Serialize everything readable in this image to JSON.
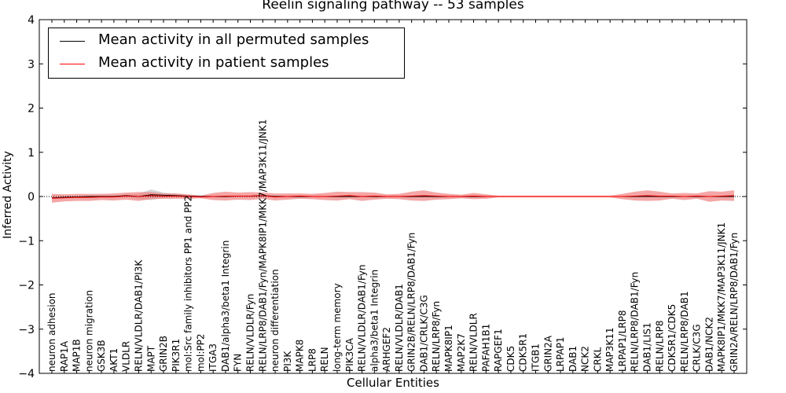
{
  "chart_data": {
    "type": "line",
    "title": "Reelin signaling pathway -- 53 samples",
    "xlabel": "Cellular Entities",
    "ylabel": "Inferred Activity",
    "ylim": [
      -4,
      4
    ],
    "yticks": [
      -4,
      -3,
      -2,
      -1,
      0,
      1,
      2,
      3,
      4
    ],
    "grid": false,
    "legend_position": "top-left",
    "colors": {
      "permuted": "#000000",
      "patient": "#ff0000",
      "band": "#f08080",
      "grey_band": "#bbbbbb"
    },
    "categories": [
      "neuron adhesion",
      "RAP1A",
      "MAP1B",
      "neuron migration",
      "GSK3B",
      "AKT1",
      "VLDLR",
      "RELN/VLDLR/DAB1/PI3K",
      "MAPT",
      "GRIN2B",
      "PIK3R1",
      "mol:Src family inhibitors PP1 and PP2",
      "mol:PP2",
      "ITGA3",
      "DAB1/alpha3/beta1 Integrin",
      "FYN",
      "RELN/VLDLR/Fyn",
      "RELN/LRP8/DAB1/Fyn/MAPK8IP1/MKK7/MAP3K11/JNK1",
      "neuron differentiation",
      "PI3K",
      "MAPK8",
      "LRP8",
      "RELN",
      "long-term memory",
      "PIK3CA",
      "RELN/VLDLR/DAB1/Fyn",
      "alpha3/beta1 Integrin",
      "ARHGEF2",
      "RELN/VLDLR/DAB1",
      "GRIN2B/RELN/LRP8/DAB1/Fyn",
      "DAB1/CRLK/C3G",
      "RELN/LRP8/Fyn",
      "MAPK8IP1",
      "MAP2K7",
      "RELN/VLDLR",
      "PAFAH1B1",
      "RAPGEF1",
      "CDK5",
      "CDK5R1",
      "ITGB1",
      "GRIN2A",
      "LRPAP1",
      "DAB1",
      "NCK2",
      "CRKL",
      "MAP3K11",
      "LRPAP1/LRP8",
      "RELN/LRP8/DAB1/Fyn",
      "DAB1/LIS1",
      "RELN/LRP8",
      "CDK5R1/CDK5",
      "RELN/LRP8/DAB1",
      "CRLK/C3G",
      "DAB1/NCK2",
      "MAPK8IP1/MKK7/MAP3K11/JNK1",
      "GRIN2A/RELN/LRP8/DAB1/Fyn"
    ],
    "series": [
      {
        "name": "Mean activity in all permuted samples",
        "color": "#000000",
        "values": [
          -0.03,
          -0.02,
          -0.01,
          0.0,
          0.0,
          0.0,
          0.02,
          0.0,
          0.04,
          0.03,
          0.02,
          0.01,
          0.0,
          0.0,
          0.0,
          0.01,
          0.01,
          0.02,
          0.0,
          0.0,
          0.0,
          0.0,
          0.0,
          0.0,
          0.0,
          0.0,
          0.0,
          0.0,
          0.0,
          0.0,
          0.0,
          0.0,
          0.0,
          0.0,
          0.0,
          0.0,
          0.0,
          0.0,
          0.0,
          0.0,
          0.0,
          0.0,
          0.0,
          0.0,
          0.0,
          0.0,
          0.0,
          0.0,
          0.0,
          0.0,
          0.0,
          0.0,
          0.0,
          0.0,
          0.0,
          0.0
        ],
        "band": [
          0.02,
          0.02,
          0.02,
          0.02,
          0.02,
          0.02,
          0.02,
          0.06,
          0.12,
          0.06,
          0.04,
          0.02,
          0.02,
          0.02,
          0.02,
          0.02,
          0.02,
          0.02,
          0.02,
          0.02,
          0.02,
          0.02,
          0.02,
          0.02,
          0.02,
          0.02,
          0.02,
          0.02,
          0.02,
          0.02,
          0.02,
          0.02,
          0.02,
          0.02,
          0.02,
          0.02,
          0.01,
          0.01,
          0.01,
          0.01,
          0.01,
          0.01,
          0.01,
          0.01,
          0.01,
          0.01,
          0.01,
          0.01,
          0.01,
          0.01,
          0.01,
          0.01,
          0.01,
          0.01,
          0.01,
          0.01
        ]
      },
      {
        "name": "Mean activity in patient samples",
        "color": "#ff0000",
        "values": [
          -0.04,
          -0.03,
          -0.02,
          -0.02,
          -0.01,
          -0.01,
          0.01,
          0.0,
          0.02,
          0.01,
          0.01,
          0.0,
          -0.01,
          0.0,
          0.01,
          0.01,
          0.01,
          0.02,
          -0.01,
          0.0,
          0.01,
          0.0,
          0.0,
          0.01,
          0.02,
          0.0,
          0.01,
          0.0,
          0.0,
          0.01,
          0.02,
          0.01,
          0.0,
          0.0,
          0.01,
          0.0,
          0.0,
          0.0,
          0.0,
          0.0,
          0.0,
          0.0,
          0.0,
          0.0,
          0.0,
          0.0,
          0.0,
          0.01,
          0.02,
          0.01,
          0.01,
          0.0,
          0.01,
          0.0,
          0.01,
          0.02
        ],
        "band": [
          0.1,
          0.08,
          0.08,
          0.08,
          0.07,
          0.08,
          0.08,
          0.1,
          0.08,
          0.06,
          0.06,
          0.05,
          0.03,
          0.08,
          0.1,
          0.08,
          0.09,
          0.07,
          0.08,
          0.07,
          0.06,
          0.06,
          0.08,
          0.1,
          0.08,
          0.1,
          0.08,
          0.05,
          0.06,
          0.1,
          0.12,
          0.08,
          0.06,
          0.04,
          0.07,
          0.05,
          0.02,
          0.02,
          0.02,
          0.02,
          0.02,
          0.02,
          0.02,
          0.02,
          0.02,
          0.02,
          0.06,
          0.1,
          0.12,
          0.1,
          0.06,
          0.08,
          0.06,
          0.12,
          0.1,
          0.12
        ]
      }
    ]
  }
}
